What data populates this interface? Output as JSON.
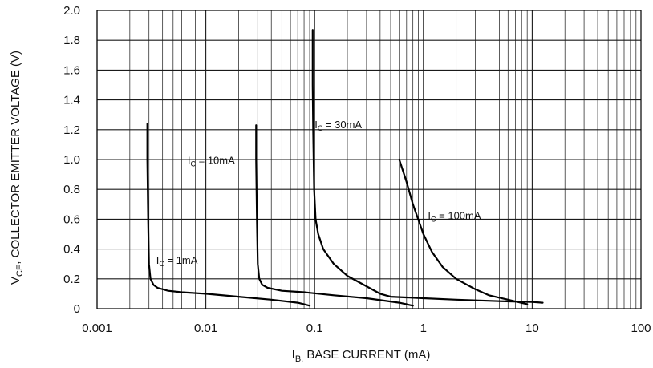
{
  "chart_data": {
    "type": "line",
    "xscale": "log",
    "xlim": [
      0.001,
      100
    ],
    "ylim": [
      0,
      2.0
    ],
    "grid": true,
    "xlabel": {
      "main": "I",
      "sub": "B,",
      "rest": " BASE CURRENT (mA)"
    },
    "ylabel": {
      "main": "V",
      "sub": "CE",
      "rest": ", COLLECTOR EMITTER VOLTAGE (V)"
    },
    "x_ticks": [
      {
        "value": 0.001,
        "label": "0.001"
      },
      {
        "value": 0.01,
        "label": "0.01"
      },
      {
        "value": 0.1,
        "label": "0.1"
      },
      {
        "value": 1,
        "label": "1"
      },
      {
        "value": 10,
        "label": "10"
      },
      {
        "value": 100,
        "label": "100"
      }
    ],
    "y_ticks": [
      {
        "value": 0,
        "label": "0"
      },
      {
        "value": 0.2,
        "label": "0.2"
      },
      {
        "value": 0.4,
        "label": "0.4"
      },
      {
        "value": 0.6,
        "label": "0.6"
      },
      {
        "value": 0.8,
        "label": "0.8"
      },
      {
        "value": 1.0,
        "label": "1.0"
      },
      {
        "value": 1.2,
        "label": "1.2"
      },
      {
        "value": 1.4,
        "label": "1.4"
      },
      {
        "value": 1.6,
        "label": "1.6"
      },
      {
        "value": 1.8,
        "label": "1.8"
      },
      {
        "value": 2.0,
        "label": "2.0"
      }
    ],
    "series": [
      {
        "label": {
          "main": "I",
          "sub": "C",
          "rest": " = 1mA"
        },
        "label_at": {
          "x": 0.0035,
          "y": 0.3
        },
        "points": [
          [
            0.0029,
            1.24
          ],
          [
            0.0029,
            1.0
          ],
          [
            0.00295,
            0.6
          ],
          [
            0.003,
            0.3
          ],
          [
            0.0031,
            0.2
          ],
          [
            0.0033,
            0.16
          ],
          [
            0.0036,
            0.14
          ],
          [
            0.0045,
            0.12
          ],
          [
            0.006,
            0.11
          ],
          [
            0.01,
            0.1
          ],
          [
            0.02,
            0.08
          ],
          [
            0.04,
            0.06
          ],
          [
            0.07,
            0.04
          ],
          [
            0.09,
            0.02
          ]
        ]
      },
      {
        "label": {
          "main": "I",
          "sub": "C",
          "rest": " = 10mA"
        },
        "label_at": {
          "x": 0.0068,
          "y": 0.97
        },
        "points": [
          [
            0.029,
            1.23
          ],
          [
            0.029,
            1.0
          ],
          [
            0.0295,
            0.6
          ],
          [
            0.03,
            0.3
          ],
          [
            0.031,
            0.2
          ],
          [
            0.033,
            0.16
          ],
          [
            0.037,
            0.14
          ],
          [
            0.05,
            0.12
          ],
          [
            0.08,
            0.11
          ],
          [
            0.15,
            0.09
          ],
          [
            0.3,
            0.07
          ],
          [
            0.6,
            0.04
          ],
          [
            0.8,
            0.02
          ]
        ]
      },
      {
        "label": {
          "main": "I",
          "sub": "C",
          "rest": " = 30mA"
        },
        "label_at": {
          "x": 0.1,
          "y": 1.21
        },
        "points": [
          [
            0.096,
            1.87
          ],
          [
            0.096,
            1.5
          ],
          [
            0.097,
            1.2
          ],
          [
            0.099,
            0.8
          ],
          [
            0.102,
            0.6
          ],
          [
            0.108,
            0.5
          ],
          [
            0.12,
            0.4
          ],
          [
            0.15,
            0.3
          ],
          [
            0.2,
            0.22
          ],
          [
            0.3,
            0.15
          ],
          [
            0.4,
            0.1
          ],
          [
            0.5,
            0.08
          ],
          [
            1,
            0.07
          ],
          [
            2,
            0.06
          ],
          [
            5,
            0.05
          ],
          [
            10,
            0.045
          ],
          [
            12.5,
            0.04
          ]
        ]
      },
      {
        "label": {
          "main": "I",
          "sub": "C",
          "rest": " = 100mA"
        },
        "label_at": {
          "x": 1.1,
          "y": 0.6
        },
        "points": [
          [
            0.6,
            1.0
          ],
          [
            0.7,
            0.85
          ],
          [
            0.8,
            0.7
          ],
          [
            1.0,
            0.5
          ],
          [
            1.2,
            0.38
          ],
          [
            1.5,
            0.28
          ],
          [
            2,
            0.2
          ],
          [
            3,
            0.13
          ],
          [
            4,
            0.09
          ],
          [
            6,
            0.06
          ],
          [
            9,
            0.03
          ]
        ]
      }
    ]
  }
}
